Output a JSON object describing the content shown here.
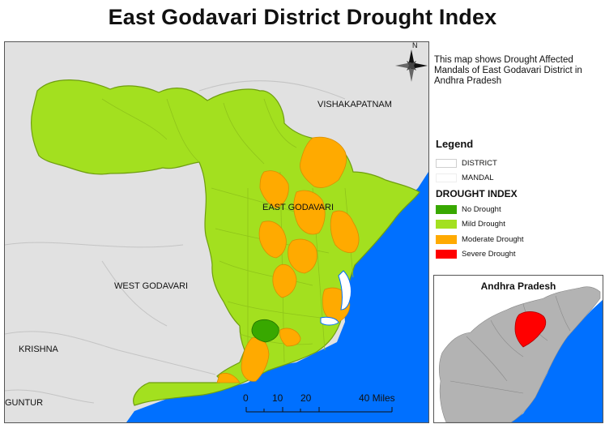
{
  "title": "East Godavari District Drought Index",
  "description": "This map shows Drought Affected Mandals of East Godavari District in Andhra Pradesh",
  "map_labels": {
    "north": "N",
    "vishakapatnam": "VISHAKAPATNAM",
    "east_godavari": "EAST GODAVARI",
    "west_godavari": "WEST GODAVARI",
    "krishna": "KRISHNA",
    "guntur": "GUNTUR"
  },
  "legend": {
    "title": "Legend",
    "boundaries": [
      {
        "label": "DISTRICT"
      },
      {
        "label": "MANDAL"
      }
    ],
    "drought_title": "DROUGHT INDEX",
    "drought_classes": [
      {
        "label": "No Drought",
        "color": "#38a800"
      },
      {
        "label": "Mild Drought",
        "color": "#a3e01f"
      },
      {
        "label": "Moderate Drought",
        "color": "#ffaa00"
      },
      {
        "label": "Severe Drought",
        "color": "#ff0000"
      }
    ]
  },
  "inset": {
    "title": "Andhra Pradesh",
    "highlight_color": "#ff0000",
    "land_color": "#b3b3b3",
    "sea_color": "#0070ff"
  },
  "scale_bar": {
    "ticks": [
      "0",
      "10",
      "20",
      "40 Miles"
    ]
  },
  "colors": {
    "sea": "#0070ff",
    "land_outside": "#e1e1e1",
    "mild": "#a3e01f",
    "moderate": "#ffaa00",
    "none": "#38a800"
  }
}
